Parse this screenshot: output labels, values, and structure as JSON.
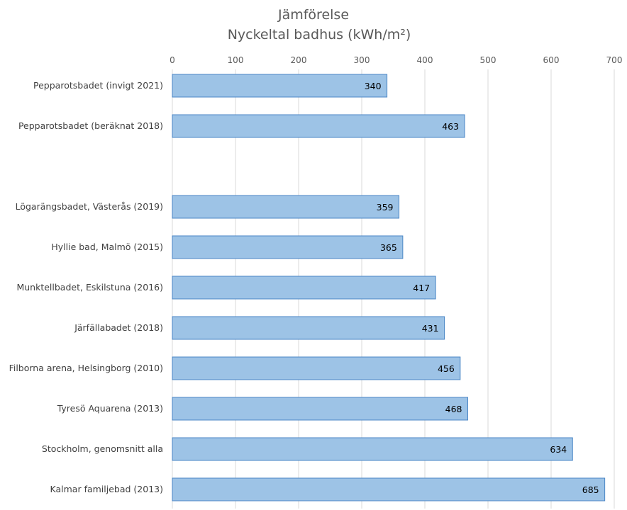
{
  "chart_data": {
    "type": "bar",
    "orientation": "horizontal",
    "title": "Jämförelse",
    "subtitle": "Nyckeltal badhus (kWh/m²)",
    "xlim": [
      0,
      700
    ],
    "ticks": [
      0,
      100,
      200,
      300,
      400,
      500,
      600,
      700
    ],
    "tick_labels": [
      "0",
      "100",
      "200",
      "300",
      "400",
      "500",
      "600",
      "700"
    ],
    "axis_position": "top",
    "grid": true,
    "bar_color": "#9dc3e6",
    "bar_edge_color": "#4a86c5",
    "categories": [
      "Pepparotsbadet (invigt 2021)",
      "Pepparotsbadet (beräknat 2018)",
      "",
      "Lögarängsbadet, Västerås (2019)",
      "Hyllie bad, Malmö (2015)",
      "Munktellbadet, Eskilstuna (2016)",
      "Järfällabadet (2018)",
      "Filborna arena, Helsingborg (2010)",
      "Tyresö Aquarena (2013)",
      "Stockholm, genomsnitt alla",
      "Kalmar familjebad (2013)"
    ],
    "values": [
      340,
      463,
      null,
      359,
      365,
      417,
      431,
      456,
      468,
      634,
      685
    ],
    "value_labels": [
      "340",
      "463",
      "",
      "359",
      "365",
      "417",
      "431",
      "456",
      "468",
      "634",
      "685"
    ]
  }
}
